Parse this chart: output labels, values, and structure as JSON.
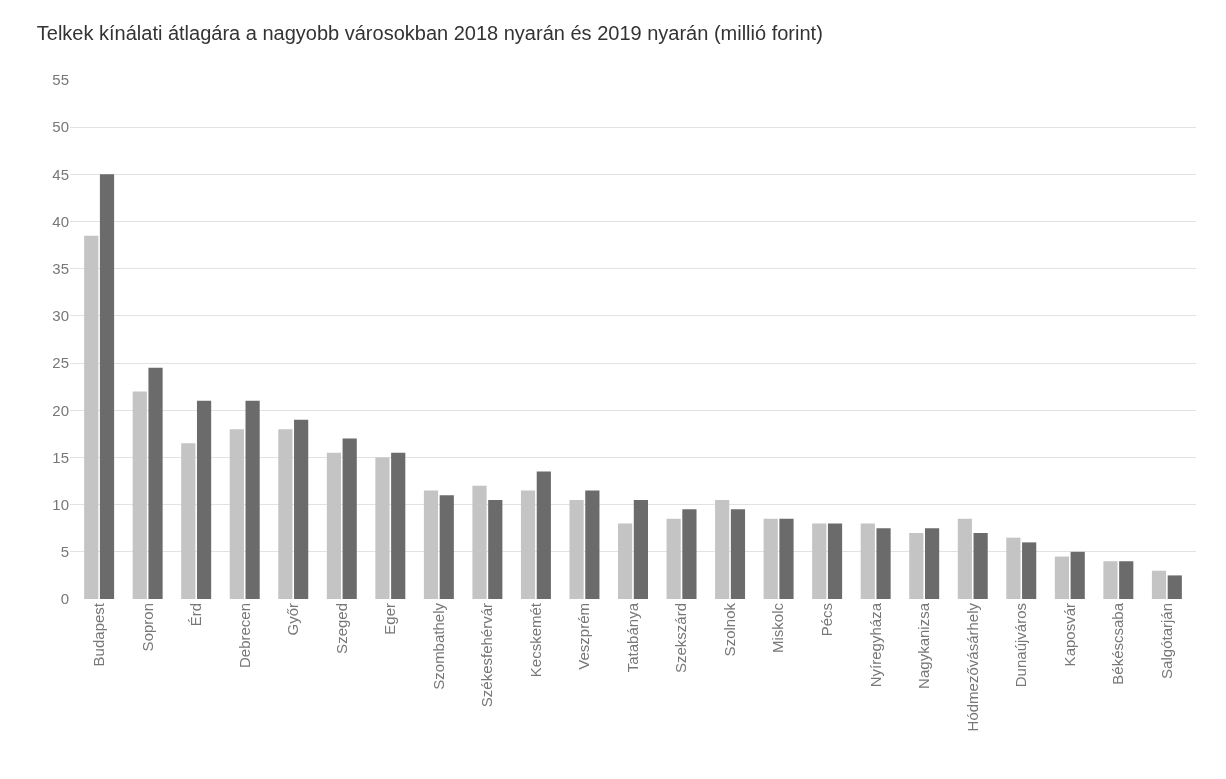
{
  "chart_data": {
    "type": "bar",
    "title": "Telkek kínálati átlagára a nagyobb városokban 2018 nyarán és 2019 nyarán (millió forint)",
    "categories": [
      "Budapest",
      "Sopron",
      "Érd",
      "Debrecen",
      "Győr",
      "Szeged",
      "Eger",
      "Szombathely",
      "Székesfehérvár",
      "Kecskemét",
      "Veszprém",
      "Tatabánya",
      "Szekszárd",
      "Szolnok",
      "Miskolc",
      "Pécs",
      "Nyíregyháza",
      "Nagykanizsa",
      "Hódmezővásárhely",
      "Dunaújváros",
      "Kaposvár",
      "Békéscsaba",
      "Salgótarján"
    ],
    "series": [
      {
        "color": "#c4c4c4",
        "values": [
          38.5,
          22,
          16.5,
          18,
          18,
          15.5,
          15,
          11.5,
          12,
          11.5,
          10.5,
          8,
          8.5,
          10.5,
          8.5,
          8,
          8,
          7,
          8.5,
          6.5,
          4.5,
          4,
          3
        ]
      },
      {
        "color": "#6b6b6b",
        "values": [
          45,
          24.5,
          21,
          21,
          19,
          17,
          15.5,
          11,
          10.5,
          13.5,
          11.5,
          10.5,
          9.5,
          9.5,
          8.5,
          8,
          7.5,
          7.5,
          7,
          6,
          5,
          4,
          2.5
        ]
      }
    ],
    "ylim": [
      0,
      55
    ],
    "yticks": [
      0,
      5,
      10,
      15,
      20,
      25,
      30,
      35,
      40,
      45,
      50,
      55
    ],
    "grid": "y"
  }
}
